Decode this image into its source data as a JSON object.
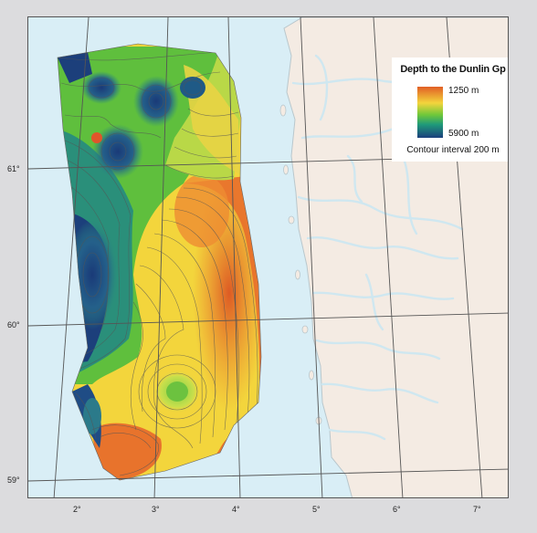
{
  "legend": {
    "title": "Depth to the Dunlin Gp",
    "min_label": "1250 m",
    "max_label": "5900 m",
    "contour_note": "Contour interval 200 m",
    "colors": [
      "#e15f25",
      "#f3d53c",
      "#6fc83a",
      "#1f9a7a",
      "#1b3f7c"
    ]
  },
  "grid": {
    "latitudes": [
      "61°",
      "60°",
      "59°"
    ],
    "longitudes": [
      "2°",
      "3°",
      "4°",
      "5°",
      "6°",
      "7°"
    ]
  },
  "colors": {
    "sea": "#d9eef6",
    "land": "#f4ebe3",
    "background": "#dcdcde"
  }
}
